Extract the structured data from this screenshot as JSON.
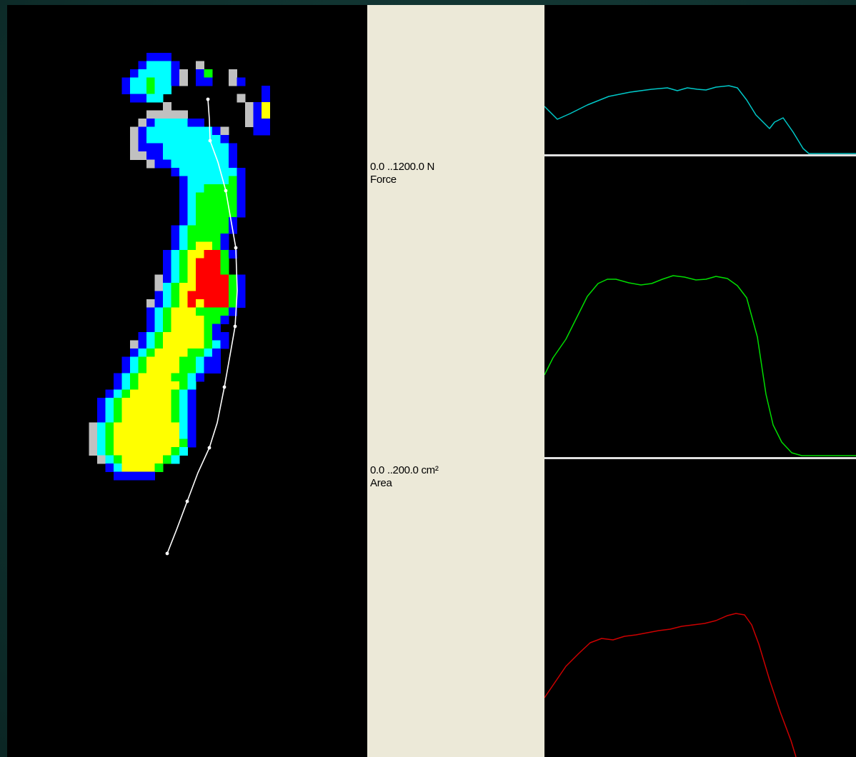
{
  "scale": {
    "force": {
      "range": "0.0 ..1200.0 N",
      "name": "Force"
    },
    "area": {
      "range": "0.0 ..200.0 cm²",
      "name": "Area"
    }
  },
  "pressure_map": {
    "palette": {
      "1": "#c0c0c0",
      "2": "#0000ff",
      "3": "#00ffff",
      "4": "#00ff00",
      "5": "#ffff00",
      "6": "#ff0000"
    }
  },
  "graphs": {
    "force": {
      "color": "#00c8c8"
    },
    "area": {
      "color": "#00dd00"
    },
    "pressure": {
      "color": "#cc0000"
    },
    "baseline_color": "#e0e0e0"
  }
}
